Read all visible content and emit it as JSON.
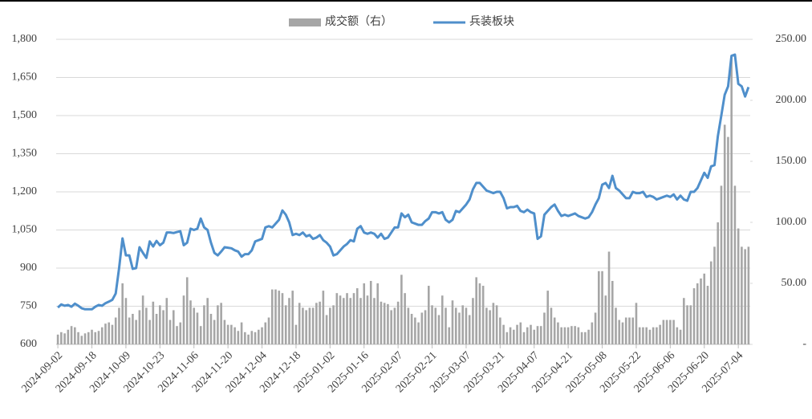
{
  "chart_data": {
    "type": "bar_line",
    "categories": [
      "2024-09-02",
      null,
      null,
      null,
      null,
      null,
      null,
      null,
      null,
      null,
      "2024-09-18",
      null,
      null,
      null,
      null,
      null,
      null,
      null,
      null,
      null,
      "2024-10-09",
      null,
      null,
      null,
      null,
      null,
      null,
      null,
      null,
      null,
      "2024-10-23",
      null,
      null,
      null,
      null,
      null,
      null,
      null,
      null,
      null,
      "2024-11-06",
      null,
      null,
      null,
      null,
      null,
      null,
      null,
      null,
      null,
      "2024-11-20",
      null,
      null,
      null,
      null,
      null,
      null,
      null,
      null,
      null,
      "2024-12-04",
      null,
      null,
      null,
      null,
      null,
      null,
      null,
      null,
      null,
      "2024-12-18",
      null,
      null,
      null,
      null,
      null,
      null,
      null,
      null,
      null,
      "2025-01-02",
      null,
      null,
      null,
      null,
      null,
      null,
      null,
      null,
      null,
      "2025-01-16",
      null,
      null,
      null,
      null,
      null,
      null,
      null,
      null,
      null,
      "2025-02-07",
      null,
      null,
      null,
      null,
      null,
      null,
      null,
      null,
      null,
      "2025-02-21",
      null,
      null,
      null,
      null,
      null,
      null,
      null,
      null,
      null,
      "2025-03-07",
      null,
      null,
      null,
      null,
      null,
      null,
      null,
      null,
      null,
      "2025-03-21",
      null,
      null,
      null,
      null,
      null,
      null,
      null,
      null,
      null,
      "2025-04-07",
      null,
      null,
      null,
      null,
      null,
      null,
      null,
      null,
      null,
      "2025-04-21",
      null,
      null,
      null,
      null,
      null,
      null,
      null,
      null,
      null,
      "2025-05-08",
      null,
      null,
      null,
      null,
      null,
      null,
      null,
      null,
      null,
      "2025-05-22",
      null,
      null,
      null,
      null,
      null,
      null,
      null,
      null,
      null,
      "2025-06-06",
      null,
      null,
      null,
      null,
      null,
      null,
      null,
      null,
      null,
      "2025-06-20",
      null,
      null,
      null,
      null,
      null,
      null,
      null,
      null,
      null,
      "2025-07-04",
      null,
      null,
      null
    ],
    "series": [
      {
        "name": "成交额（右）",
        "type": "bar",
        "axis": "y2",
        "color": "#a6a6a6",
        "values": [
          8,
          10,
          9,
          12,
          15,
          14,
          10,
          7,
          9,
          10,
          12,
          10,
          11,
          14,
          17,
          18,
          16,
          22,
          30,
          50,
          38,
          22,
          25,
          20,
          28,
          40,
          30,
          20,
          35,
          25,
          32,
          28,
          38,
          20,
          28,
          15,
          18,
          40,
          55,
          36,
          30,
          26,
          15,
          32,
          38,
          25,
          20,
          32,
          34,
          20,
          16,
          16,
          14,
          11,
          18,
          10,
          8,
          11,
          10,
          12,
          14,
          18,
          22,
          45,
          45,
          44,
          42,
          32,
          38,
          44,
          16,
          34,
          30,
          28,
          30,
          30,
          34,
          35,
          44,
          24,
          30,
          32,
          42,
          40,
          38,
          42,
          38,
          42,
          46,
          38,
          50,
          40,
          52,
          38,
          50,
          35,
          34,
          33,
          28,
          30,
          35,
          57,
          42,
          30,
          25,
          22,
          18,
          26,
          28,
          48,
          32,
          30,
          24,
          40,
          30,
          14,
          36,
          30,
          26,
          32,
          30,
          24,
          38,
          55,
          50,
          48,
          30,
          28,
          34,
          32,
          22,
          16,
          10,
          14,
          12,
          16,
          18,
          10,
          14,
          16,
          12,
          15,
          15,
          26,
          44,
          30,
          22,
          18,
          14,
          14,
          14,
          15,
          15,
          14,
          10,
          10,
          12,
          18,
          26,
          60,
          60,
          40,
          76,
          52,
          30,
          20,
          18,
          22,
          22,
          22,
          34,
          14,
          14,
          14,
          12,
          14,
          14,
          16,
          20,
          20,
          20,
          20,
          14,
          12,
          38,
          32,
          32,
          46,
          50,
          54,
          58,
          48,
          68,
          80,
          100,
          130,
          180,
          170,
          236,
          130,
          95,
          80,
          78,
          80
        ]
      },
      {
        "name": "兵装板块",
        "type": "line",
        "axis": "y",
        "color": "#4f8fcb",
        "values": [
          745,
          757,
          752,
          755,
          748,
          760,
          752,
          742,
          738,
          738,
          738,
          748,
          755,
          752,
          762,
          768,
          775,
          800,
          900,
          1017,
          950,
          950,
          897,
          900,
          982,
          960,
          940,
          1005,
          985,
          1007,
          990,
          1000,
          1040,
          1040,
          1038,
          1042,
          1045,
          990,
          1000,
          1055,
          1050,
          1055,
          1095,
          1060,
          1050,
          1000,
          960,
          950,
          965,
          982,
          980,
          978,
          970,
          965,
          945,
          955,
          955,
          970,
          1005,
          1010,
          1015,
          1060,
          1065,
          1060,
          1075,
          1090,
          1127,
          1110,
          1080,
          1030,
          1035,
          1030,
          1040,
          1025,
          1030,
          1015,
          1020,
          1030,
          1010,
          1000,
          985,
          950,
          955,
          970,
          985,
          995,
          1010,
          1005,
          1055,
          1065,
          1040,
          1035,
          1040,
          1035,
          1020,
          1035,
          1015,
          1020,
          1040,
          1060,
          1060,
          1115,
          1100,
          1110,
          1080,
          1075,
          1070,
          1070,
          1085,
          1095,
          1120,
          1120,
          1115,
          1120,
          1090,
          1080,
          1090,
          1125,
          1120,
          1135,
          1150,
          1170,
          1210,
          1235,
          1235,
          1220,
          1205,
          1200,
          1195,
          1200,
          1200,
          1175,
          1135,
          1140,
          1140,
          1145,
          1125,
          1120,
          1130,
          1120,
          1115,
          1015,
          1025,
          1110,
          1125,
          1140,
          1150,
          1125,
          1105,
          1110,
          1105,
          1110,
          1115,
          1105,
          1100,
          1095,
          1100,
          1120,
          1150,
          1175,
          1228,
          1235,
          1215,
          1263,
          1215,
          1205,
          1190,
          1175,
          1175,
          1200,
          1195,
          1195,
          1200,
          1180,
          1185,
          1180,
          1170,
          1175,
          1180,
          1185,
          1180,
          1190,
          1170,
          1185,
          1170,
          1165,
          1200,
          1200,
          1215,
          1245,
          1275,
          1255,
          1300,
          1305,
          1420,
          1500,
          1582,
          1615,
          1735,
          1740,
          1625,
          1615,
          1575,
          1612
        ]
      }
    ],
    "ylim": [
      600,
      1800
    ],
    "yticks": [
      600,
      750,
      900,
      {
        "value": 1050,
        "label": "1,050"
      },
      {
        "value": 1200,
        "label": "1,200"
      },
      {
        "value": 1350,
        "label": "1,350"
      },
      {
        "value": 1500,
        "label": "1,500"
      },
      {
        "value": 1650,
        "label": "1,650"
      },
      {
        "value": 1800,
        "label": "1,800"
      }
    ],
    "y2lim": [
      0,
      250
    ],
    "y2ticks": [
      {
        "value": 0,
        "label": "-"
      },
      {
        "value": 50,
        "label": "50.00"
      },
      {
        "value": 100,
        "label": "100.00"
      },
      {
        "value": 150,
        "label": "150.00"
      },
      {
        "value": 200,
        "label": "200.00"
      },
      {
        "value": 250,
        "label": "250.00"
      }
    ],
    "grid": true,
    "legend": "top"
  }
}
